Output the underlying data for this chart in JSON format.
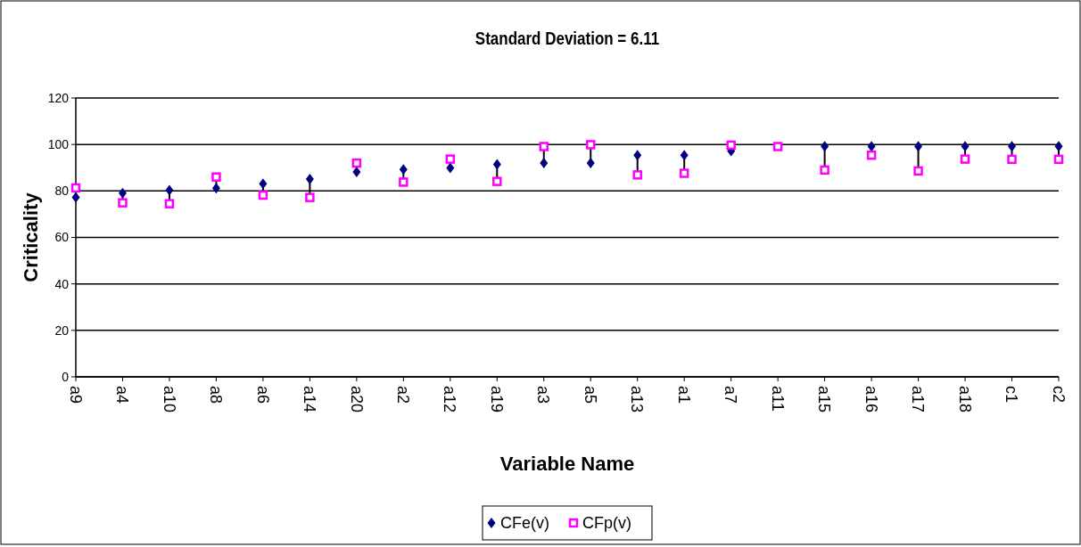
{
  "chart_data": {
    "type": "scatter",
    "title": "Standard Deviation = 6.11",
    "xlabel": "Variable Name",
    "ylabel": "Criticality",
    "categories": [
      "a9",
      "a4",
      "a10",
      "a8",
      "a6",
      "a14",
      "a20",
      "a2",
      "a12",
      "a19",
      "a3",
      "a5",
      "a13",
      "a1",
      "a7",
      "a11",
      "a15",
      "a16",
      "a17",
      "a18",
      "c1",
      "c2"
    ],
    "series": [
      {
        "name": "CFe(v)",
        "color": "#000080",
        "marker": "diamond",
        "values": [
          77.3,
          79.1,
          80.3,
          81.2,
          83.1,
          85.1,
          88.2,
          89.2,
          89.9,
          91.4,
          92,
          92,
          95.4,
          95.4,
          97.2,
          null,
          99.2,
          99.2,
          99.2,
          99.2,
          99.2,
          99.2
        ]
      },
      {
        "name": "CFp(v)",
        "color": "#ff00ff",
        "marker": "square",
        "values": [
          81.3,
          74.9,
          74.5,
          86,
          78.2,
          77.2,
          92,
          83.8,
          93.7,
          84.1,
          99.1,
          99.9,
          86.9,
          87.6,
          99.7,
          99.1,
          89,
          95.4,
          88.6,
          93.7,
          93.6,
          93.6
        ]
      }
    ],
    "ylim": [
      0,
      120
    ],
    "yticks": [
      0,
      20,
      40,
      60,
      80,
      100,
      120
    ],
    "grid": "y",
    "legend": "bottom"
  }
}
